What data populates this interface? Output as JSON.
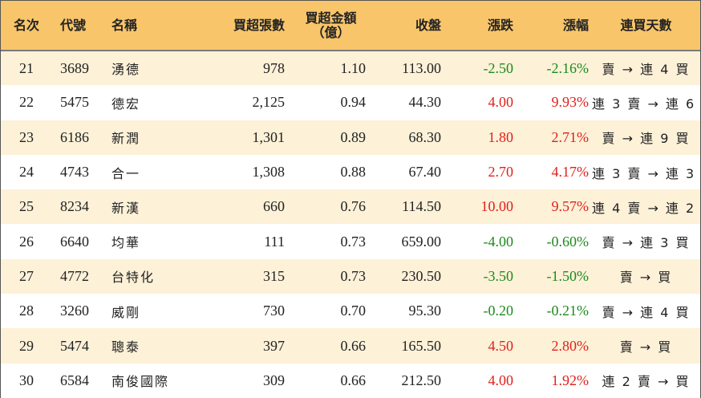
{
  "headers": {
    "rank": "名次",
    "code": "代號",
    "name": "名稱",
    "net_buy_lots": "買超張數",
    "net_buy_amount_line1": "買超金額",
    "net_buy_amount_line2": "（億）",
    "close": "收盤",
    "change": "漲跌",
    "change_pct": "漲幅",
    "consecutive_days": "連買天數"
  },
  "colors": {
    "header_bg": "#f8c56a",
    "stripe_bg": "#fdf1d8",
    "up": "#e0201a",
    "down": "#1c8a1c"
  },
  "rows": [
    {
      "rank": "21",
      "code": "3689",
      "name": "湧德",
      "lots": "978",
      "amount": "1.10",
      "close": "113.00",
      "change": "-2.50",
      "pct": "-2.16%",
      "trend": "down",
      "days": "賣 → 連 4 買"
    },
    {
      "rank": "22",
      "code": "5475",
      "name": "德宏",
      "lots": "2,125",
      "amount": "0.94",
      "close": "44.30",
      "change": "4.00",
      "pct": "9.93%",
      "trend": "up",
      "days": "連 3 賣 → 連 6 買"
    },
    {
      "rank": "23",
      "code": "6186",
      "name": "新潤",
      "lots": "1,301",
      "amount": "0.89",
      "close": "68.30",
      "change": "1.80",
      "pct": "2.71%",
      "trend": "up",
      "days": "賣 → 連 9 買"
    },
    {
      "rank": "24",
      "code": "4743",
      "name": "合一",
      "lots": "1,308",
      "amount": "0.88",
      "close": "67.40",
      "change": "2.70",
      "pct": "4.17%",
      "trend": "up",
      "days": "連 3 賣 → 連 3 買"
    },
    {
      "rank": "25",
      "code": "8234",
      "name": "新漢",
      "lots": "660",
      "amount": "0.76",
      "close": "114.50",
      "change": "10.00",
      "pct": "9.57%",
      "trend": "up",
      "days": "連 4 賣 → 連 2 買"
    },
    {
      "rank": "26",
      "code": "6640",
      "name": "均華",
      "lots": "111",
      "amount": "0.73",
      "close": "659.00",
      "change": "-4.00",
      "pct": "-0.60%",
      "trend": "down",
      "days": "賣 → 連 3 買"
    },
    {
      "rank": "27",
      "code": "4772",
      "name": "台特化",
      "lots": "315",
      "amount": "0.73",
      "close": "230.50",
      "change": "-3.50",
      "pct": "-1.50%",
      "trend": "down",
      "days": "賣 → 買"
    },
    {
      "rank": "28",
      "code": "3260",
      "name": "威剛",
      "lots": "730",
      "amount": "0.70",
      "close": "95.30",
      "change": "-0.20",
      "pct": "-0.21%",
      "trend": "down",
      "days": "賣 → 連 4 買"
    },
    {
      "rank": "29",
      "code": "5474",
      "name": "聰泰",
      "lots": "397",
      "amount": "0.66",
      "close": "165.50",
      "change": "4.50",
      "pct": "2.80%",
      "trend": "up",
      "days": "賣 → 買"
    },
    {
      "rank": "30",
      "code": "6584",
      "name": "南俊國際",
      "lots": "309",
      "amount": "0.66",
      "close": "212.50",
      "change": "4.00",
      "pct": "1.92%",
      "trend": "up",
      "days": "連 2 賣 → 買"
    }
  ]
}
